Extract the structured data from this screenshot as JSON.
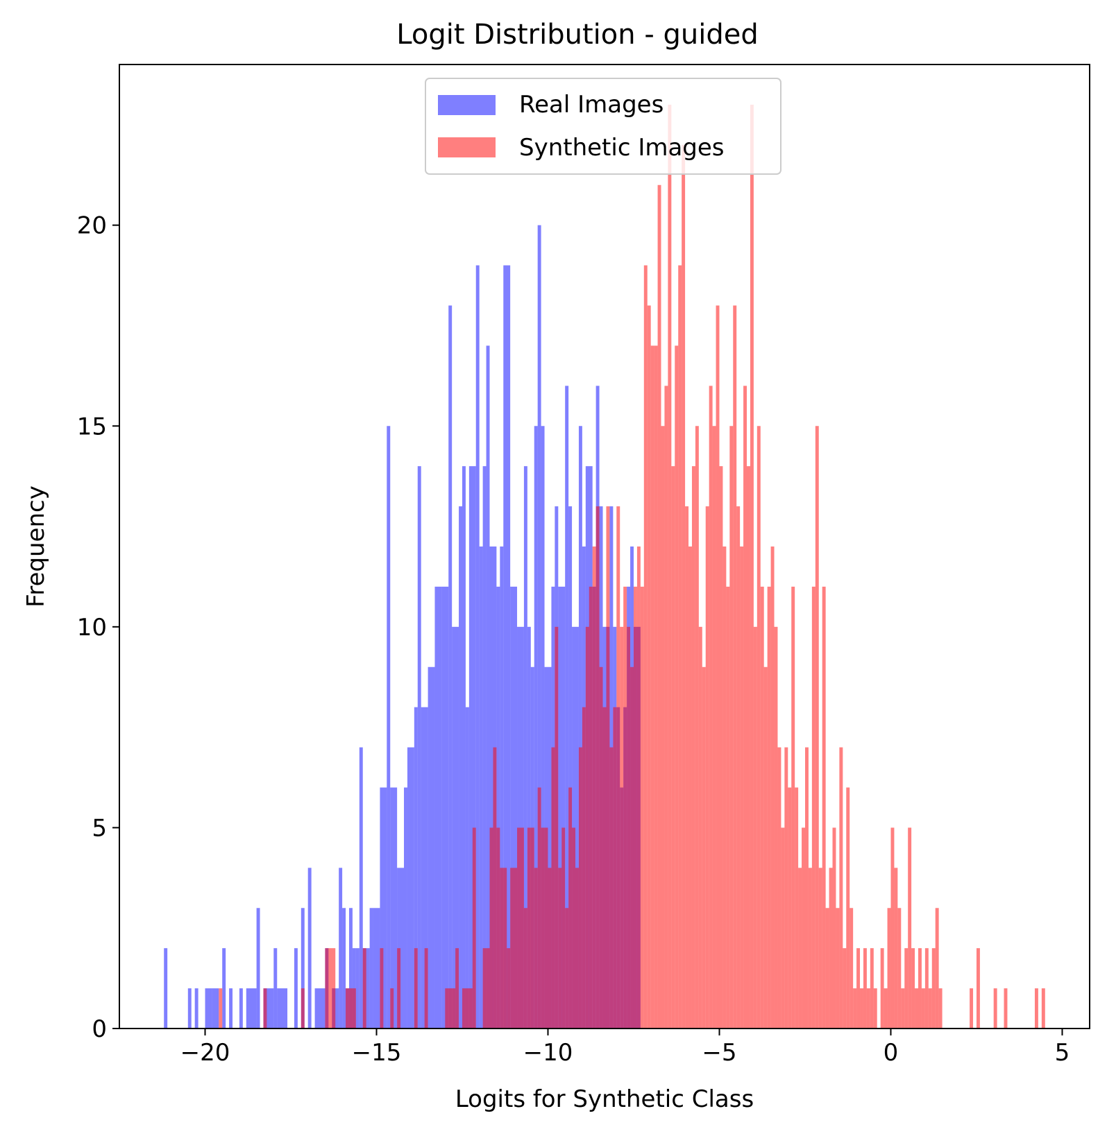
{
  "chart_data": {
    "type": "bar",
    "title": "Logit Distribution - guided",
    "xlabel": "Logits for Synthetic Class",
    "ylabel": "Frequency",
    "xlim": [
      -22.5,
      5.8
    ],
    "ylim": [
      0,
      24
    ],
    "xticks": [
      -20,
      -15,
      -10,
      -5,
      0,
      5
    ],
    "xtick_labels": [
      "−20",
      "−15",
      "−10",
      "−5",
      "0",
      "5"
    ],
    "yticks": [
      0,
      5,
      10,
      15,
      20
    ],
    "ytick_labels": [
      "0",
      "5",
      "10",
      "15",
      "20"
    ],
    "grid": false,
    "legend_position": "upper center",
    "series": [
      {
        "name": "Real Images",
        "color": "#0000ff",
        "alpha": 0.5,
        "bins": [
          [
            -21.2,
            -21.1,
            2
          ],
          [
            -20.5,
            -20.4,
            1
          ],
          [
            -20.3,
            -20.2,
            1
          ],
          [
            -20.0,
            -19.8,
            1
          ],
          [
            -19.8,
            -19.6,
            1
          ],
          [
            -19.5,
            -19.4,
            2
          ],
          [
            -19.3,
            -19.2,
            1
          ],
          [
            -19.0,
            -18.9,
            1
          ],
          [
            -18.8,
            -18.5,
            1
          ],
          [
            -18.5,
            -18.4,
            3
          ],
          [
            -18.3,
            -18.0,
            1
          ],
          [
            -18.0,
            -17.9,
            2
          ],
          [
            -17.9,
            -17.6,
            1
          ],
          [
            -17.4,
            -17.3,
            2
          ],
          [
            -17.2,
            -17.1,
            3
          ],
          [
            -17.0,
            -16.9,
            4
          ],
          [
            -16.8,
            -16.5,
            1
          ],
          [
            -16.5,
            -16.4,
            2
          ],
          [
            -16.3,
            -16.1,
            1
          ],
          [
            -16.1,
            -16.0,
            4
          ],
          [
            -16.0,
            -15.9,
            3
          ],
          [
            -15.9,
            -15.8,
            1
          ],
          [
            -15.8,
            -15.7,
            3
          ],
          [
            -15.7,
            -15.6,
            2
          ],
          [
            -15.6,
            -15.5,
            2
          ],
          [
            -15.5,
            -15.4,
            7
          ],
          [
            -15.4,
            -15.2,
            2
          ],
          [
            -15.2,
            -15.1,
            3
          ],
          [
            -15.1,
            -14.9,
            3
          ],
          [
            -14.9,
            -14.7,
            6
          ],
          [
            -14.7,
            -14.6,
            15
          ],
          [
            -14.6,
            -14.4,
            6
          ],
          [
            -14.4,
            -14.2,
            4
          ],
          [
            -14.2,
            -14.1,
            6
          ],
          [
            -14.1,
            -13.9,
            7
          ],
          [
            -13.9,
            -13.8,
            8
          ],
          [
            -13.8,
            -13.7,
            14
          ],
          [
            -13.7,
            -13.5,
            8
          ],
          [
            -13.5,
            -13.3,
            9
          ],
          [
            -13.3,
            -13.1,
            11
          ],
          [
            -13.1,
            -12.9,
            11
          ],
          [
            -12.9,
            -12.8,
            18
          ],
          [
            -12.8,
            -12.6,
            10
          ],
          [
            -12.6,
            -12.5,
            13
          ],
          [
            -12.5,
            -12.4,
            14
          ],
          [
            -12.4,
            -12.3,
            8
          ],
          [
            -12.3,
            -12.1,
            14
          ],
          [
            -12.1,
            -12.0,
            19
          ],
          [
            -12.0,
            -11.9,
            12
          ],
          [
            -11.9,
            -11.8,
            14
          ],
          [
            -11.8,
            -11.7,
            17
          ],
          [
            -11.7,
            -11.5,
            12
          ],
          [
            -11.5,
            -11.4,
            11
          ],
          [
            -11.4,
            -11.3,
            12
          ],
          [
            -11.3,
            -11.1,
            19
          ],
          [
            -11.1,
            -10.9,
            11
          ],
          [
            -10.9,
            -10.7,
            10
          ],
          [
            -10.7,
            -10.6,
            14
          ],
          [
            -10.6,
            -10.5,
            10
          ],
          [
            -10.5,
            -10.4,
            9
          ],
          [
            -10.4,
            -10.3,
            15
          ],
          [
            -10.3,
            -10.2,
            20
          ],
          [
            -10.2,
            -10.1,
            15
          ],
          [
            -10.1,
            -9.9,
            9
          ],
          [
            -9.9,
            -9.8,
            11
          ],
          [
            -9.8,
            -9.7,
            13
          ],
          [
            -9.7,
            -9.5,
            11
          ],
          [
            -9.5,
            -9.4,
            16
          ],
          [
            -9.4,
            -9.3,
            13
          ],
          [
            -9.3,
            -9.1,
            10
          ],
          [
            -9.1,
            -9.0,
            15
          ],
          [
            -9.0,
            -8.9,
            12
          ],
          [
            -8.9,
            -8.7,
            14
          ],
          [
            -8.7,
            -8.6,
            11
          ],
          [
            -8.6,
            -8.5,
            16
          ],
          [
            -8.5,
            -8.4,
            13
          ],
          [
            -8.4,
            -8.2,
            10
          ],
          [
            -8.2,
            -8.1,
            13
          ],
          [
            -8.1,
            -8.0,
            10
          ],
          [
            -8.0,
            -7.9,
            8
          ],
          [
            -7.9,
            -7.8,
            6
          ],
          [
            -7.8,
            -7.7,
            8
          ],
          [
            -7.7,
            -7.6,
            11
          ],
          [
            -7.6,
            -7.5,
            12
          ],
          [
            -7.5,
            -7.3,
            10
          ]
        ]
      },
      {
        "name": "Synthetic Images",
        "color": "#ff0000",
        "alpha": 0.5,
        "bins": [
          [
            -19.6,
            -19.5,
            1
          ],
          [
            -18.3,
            -18.2,
            1
          ],
          [
            -17.2,
            -17.1,
            1
          ],
          [
            -16.5,
            -16.2,
            2
          ],
          [
            -15.9,
            -15.6,
            1
          ],
          [
            -15.4,
            -15.3,
            2
          ],
          [
            -14.9,
            -14.8,
            2
          ],
          [
            -14.6,
            -14.5,
            1
          ],
          [
            -14.4,
            -14.3,
            2
          ],
          [
            -13.9,
            -13.8,
            2
          ],
          [
            -13.6,
            -13.5,
            2
          ],
          [
            -13.0,
            -12.7,
            1
          ],
          [
            -12.7,
            -12.6,
            2
          ],
          [
            -12.5,
            -12.2,
            1
          ],
          [
            -12.2,
            -12.1,
            5
          ],
          [
            -11.9,
            -11.7,
            2
          ],
          [
            -11.7,
            -11.6,
            5
          ],
          [
            -11.6,
            -11.5,
            7
          ],
          [
            -11.5,
            -11.4,
            5
          ],
          [
            -11.4,
            -11.2,
            4
          ],
          [
            -11.2,
            -11.1,
            2
          ],
          [
            -11.1,
            -10.9,
            4
          ],
          [
            -10.9,
            -10.7,
            5
          ],
          [
            -10.7,
            -10.6,
            3
          ],
          [
            -10.6,
            -10.4,
            5
          ],
          [
            -10.4,
            -10.3,
            4
          ],
          [
            -10.3,
            -10.2,
            6
          ],
          [
            -10.2,
            -10.1,
            5
          ],
          [
            -10.1,
            -10.0,
            5
          ],
          [
            -10.0,
            -9.9,
            4
          ],
          [
            -9.9,
            -9.8,
            7
          ],
          [
            -9.8,
            -9.7,
            10
          ],
          [
            -9.7,
            -9.6,
            4
          ],
          [
            -9.6,
            -9.5,
            5
          ],
          [
            -9.5,
            -9.4,
            3
          ],
          [
            -9.4,
            -9.3,
            6
          ],
          [
            -9.3,
            -9.2,
            5
          ],
          [
            -9.2,
            -9.1,
            4
          ],
          [
            -9.1,
            -9.0,
            7
          ],
          [
            -9.0,
            -8.9,
            8
          ],
          [
            -8.9,
            -8.8,
            10
          ],
          [
            -8.8,
            -8.7,
            11
          ],
          [
            -8.7,
            -8.6,
            12
          ],
          [
            -8.6,
            -8.5,
            13
          ],
          [
            -8.5,
            -8.4,
            9
          ],
          [
            -8.4,
            -8.3,
            8
          ],
          [
            -8.3,
            -8.2,
            13
          ],
          [
            -8.2,
            -8.1,
            7
          ],
          [
            -8.1,
            -8.0,
            8
          ],
          [
            -8.0,
            -7.9,
            13
          ],
          [
            -7.9,
            -7.8,
            10
          ],
          [
            -7.8,
            -7.7,
            11
          ],
          [
            -7.7,
            -7.6,
            10
          ],
          [
            -7.6,
            -7.5,
            9
          ],
          [
            -7.5,
            -7.4,
            11
          ],
          [
            -7.4,
            -7.3,
            12
          ],
          [
            -7.3,
            -7.2,
            11
          ],
          [
            -7.2,
            -7.1,
            19
          ],
          [
            -7.1,
            -7.0,
            18
          ],
          [
            -7.0,
            -6.9,
            17
          ],
          [
            -6.9,
            -6.8,
            17
          ],
          [
            -6.8,
            -6.7,
            21
          ],
          [
            -6.7,
            -6.6,
            15
          ],
          [
            -6.6,
            -6.5,
            16
          ],
          [
            -6.5,
            -6.4,
            23
          ],
          [
            -6.4,
            -6.3,
            14
          ],
          [
            -6.3,
            -6.2,
            17
          ],
          [
            -6.2,
            -6.1,
            19
          ],
          [
            -6.1,
            -6.0,
            22
          ],
          [
            -6.0,
            -5.9,
            13
          ],
          [
            -5.9,
            -5.8,
            12
          ],
          [
            -5.8,
            -5.7,
            14
          ],
          [
            -5.7,
            -5.6,
            15
          ],
          [
            -5.6,
            -5.5,
            10
          ],
          [
            -5.5,
            -5.4,
            9
          ],
          [
            -5.4,
            -5.3,
            13
          ],
          [
            -5.3,
            -5.2,
            16
          ],
          [
            -5.2,
            -5.1,
            15
          ],
          [
            -5.1,
            -5.0,
            18
          ],
          [
            -5.0,
            -4.9,
            14
          ],
          [
            -4.9,
            -4.8,
            12
          ],
          [
            -4.8,
            -4.7,
            11
          ],
          [
            -4.7,
            -4.6,
            15
          ],
          [
            -4.6,
            -4.5,
            18
          ],
          [
            -4.5,
            -4.4,
            13
          ],
          [
            -4.4,
            -4.3,
            12
          ],
          [
            -4.3,
            -4.2,
            16
          ],
          [
            -4.2,
            -4.1,
            14
          ],
          [
            -4.1,
            -4.0,
            23
          ],
          [
            -4.0,
            -3.9,
            10
          ],
          [
            -3.9,
            -3.8,
            15
          ],
          [
            -3.8,
            -3.7,
            11
          ],
          [
            -3.7,
            -3.6,
            9
          ],
          [
            -3.6,
            -3.5,
            11
          ],
          [
            -3.5,
            -3.4,
            12
          ],
          [
            -3.4,
            -3.3,
            10
          ],
          [
            -3.3,
            -3.2,
            7
          ],
          [
            -3.2,
            -3.1,
            5
          ],
          [
            -3.1,
            -3.0,
            7
          ],
          [
            -3.0,
            -2.9,
            6
          ],
          [
            -2.9,
            -2.8,
            11
          ],
          [
            -2.8,
            -2.7,
            6
          ],
          [
            -2.7,
            -2.6,
            4
          ],
          [
            -2.6,
            -2.5,
            5
          ],
          [
            -2.5,
            -2.4,
            7
          ],
          [
            -2.4,
            -2.3,
            4
          ],
          [
            -2.3,
            -2.2,
            11
          ],
          [
            -2.2,
            -2.1,
            15
          ],
          [
            -2.1,
            -2.0,
            4
          ],
          [
            -2.0,
            -1.9,
            11
          ],
          [
            -1.9,
            -1.8,
            3
          ],
          [
            -1.8,
            -1.7,
            4
          ],
          [
            -1.7,
            -1.6,
            5
          ],
          [
            -1.6,
            -1.5,
            3
          ],
          [
            -1.5,
            -1.4,
            7
          ],
          [
            -1.4,
            -1.3,
            2
          ],
          [
            -1.3,
            -1.2,
            6
          ],
          [
            -1.2,
            -1.1,
            3
          ],
          [
            -1.1,
            -1.0,
            1
          ],
          [
            -1.0,
            -0.9,
            2
          ],
          [
            -0.9,
            -0.8,
            1
          ],
          [
            -0.8,
            -0.7,
            2
          ],
          [
            -0.7,
            -0.6,
            1
          ],
          [
            -0.6,
            -0.5,
            2
          ],
          [
            -0.5,
            -0.4,
            1
          ],
          [
            -0.3,
            -0.2,
            2
          ],
          [
            -0.2,
            -0.1,
            1
          ],
          [
            -0.1,
            0.0,
            3
          ],
          [
            0.0,
            0.1,
            5
          ],
          [
            0.1,
            0.2,
            4
          ],
          [
            0.2,
            0.3,
            3
          ],
          [
            0.3,
            0.4,
            1
          ],
          [
            0.4,
            0.5,
            2
          ],
          [
            0.5,
            0.6,
            5
          ],
          [
            0.6,
            0.7,
            2
          ],
          [
            0.7,
            0.8,
            1
          ],
          [
            0.8,
            0.9,
            2
          ],
          [
            0.9,
            1.0,
            1
          ],
          [
            1.0,
            1.1,
            2
          ],
          [
            1.1,
            1.2,
            1
          ],
          [
            1.2,
            1.3,
            2
          ],
          [
            1.3,
            1.4,
            3
          ],
          [
            1.4,
            1.5,
            1
          ],
          [
            2.3,
            2.4,
            1
          ],
          [
            2.5,
            2.6,
            2
          ],
          [
            3.0,
            3.1,
            1
          ],
          [
            3.3,
            3.4,
            1
          ],
          [
            4.2,
            4.3,
            1
          ],
          [
            4.4,
            4.5,
            1
          ]
        ]
      }
    ]
  }
}
